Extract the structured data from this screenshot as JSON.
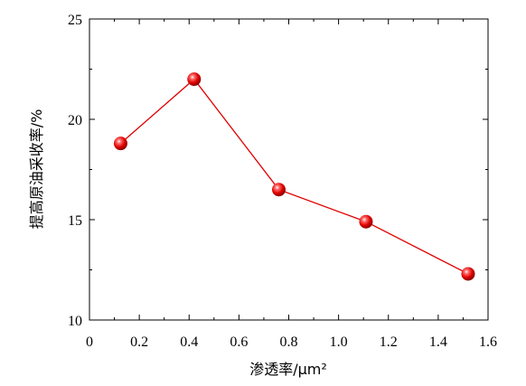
{
  "chart_data": {
    "type": "line",
    "title": "",
    "xlabel": "渗透率/μm²",
    "ylabel": "提高原油采收率/%",
    "xlim": [
      0,
      1.6
    ],
    "ylim": [
      10,
      25
    ],
    "x_ticks": [
      0,
      0.2,
      0.4,
      0.6,
      0.8,
      1.0,
      1.2,
      1.4,
      1.6
    ],
    "x_tick_labels": [
      "0",
      "0.2",
      "0.4",
      "0.6",
      "0.8",
      "1.0",
      "1.2",
      "1.4",
      "1.6"
    ],
    "y_ticks": [
      10,
      15,
      20,
      25
    ],
    "y_tick_labels": [
      "10",
      "15",
      "20",
      "25"
    ],
    "grid": false,
    "legend": "none",
    "series": [
      {
        "x": [
          0.125,
          0.42,
          0.76,
          1.11,
          1.52
        ],
        "y": [
          18.8,
          22.0,
          16.5,
          14.9,
          12.3
        ],
        "color": "#e00000",
        "marker": "sphere"
      }
    ]
  }
}
